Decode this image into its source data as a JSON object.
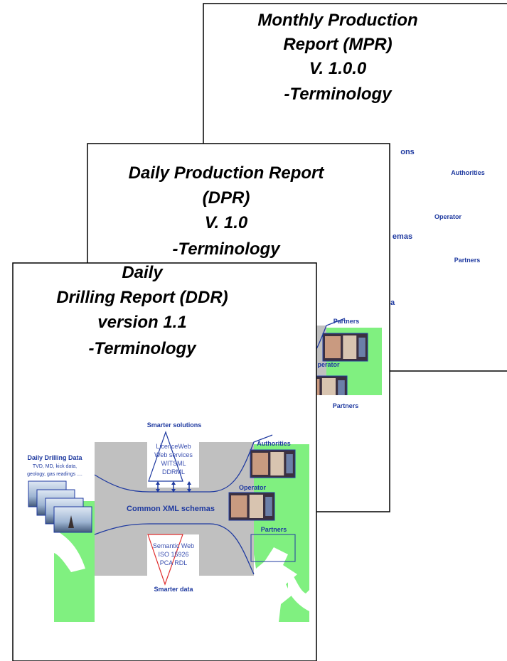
{
  "mpr": {
    "title": [
      "Monthly Production",
      "Report (MPR)",
      "V. 1.0.0",
      "-Terminology"
    ],
    "labels": [
      "ons",
      "Authorities",
      "Operator",
      "emas",
      "Partners",
      "a"
    ]
  },
  "dpr": {
    "title": [
      "Daily Production Report",
      "(DPR)",
      "V. 1.0",
      "-Terminology"
    ],
    "labels": [
      "Partners",
      "perator",
      "Partners"
    ]
  },
  "ddr": {
    "title": [
      "Daily",
      "Drilling Report (DDR)",
      "version 1.1",
      "-Terminology"
    ],
    "labels": [
      "Smarter solutions",
      "Daily Drilling Data",
      "TVD, MD, kick data,",
      "geology, gas readings ....",
      "LicenceWeb",
      "Web services",
      "WITSML",
      "DDRML",
      "Common XML schemas",
      "Semantic Web",
      "ISO 15926",
      "PCA RDL",
      "Smarter data",
      "Authorities",
      "Operator",
      "Partners"
    ]
  }
}
